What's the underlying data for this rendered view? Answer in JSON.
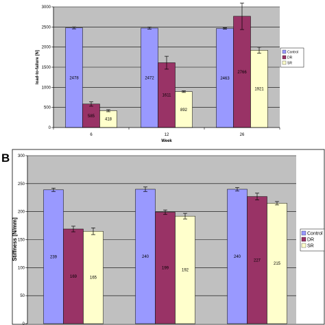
{
  "panel_labels": [
    "",
    "B"
  ],
  "chart_data": [
    {
      "type": "bar",
      "title": "",
      "xlabel": "Week",
      "ylabel": "load-to-failure [N]",
      "categories": [
        "6",
        "12",
        "26"
      ],
      "ylim": [
        0,
        3000
      ],
      "yticks": [
        "0",
        "500",
        "1000",
        "1500",
        "2000",
        "2500",
        "3000"
      ],
      "grid": true,
      "legend_position": "right",
      "series": [
        {
          "name": "Control",
          "values": [
            2478,
            2472,
            2463
          ],
          "errors": [
            25,
            25,
            15
          ],
          "labels": [
            "2478",
            "2472",
            "2463"
          ],
          "color": "#9999ff"
        },
        {
          "name": "DR",
          "values": [
            585,
            1611,
            2766
          ],
          "errors": [
            55,
            160,
            330
          ],
          "labels": [
            "585",
            "1611",
            "2766"
          ],
          "color": "#993366"
        },
        {
          "name": "SR",
          "values": [
            418,
            892,
            1921
          ],
          "errors": [
            25,
            20,
            75
          ],
          "labels": [
            "418",
            "892",
            "1921"
          ],
          "color": "#ffffcc"
        }
      ]
    },
    {
      "type": "bar",
      "title": "",
      "xlabel": "",
      "ylabel": "Stiffness [N/mm]",
      "categories": [
        "",
        "",
        ""
      ],
      "ylim": [
        0,
        300
      ],
      "yticks": [
        "0",
        "50",
        "100",
        "150",
        "200",
        "250",
        "300"
      ],
      "grid": true,
      "legend_position": "right",
      "series": [
        {
          "name": "Control",
          "values": [
            239,
            240,
            240
          ],
          "errors": [
            3,
            4,
            3
          ],
          "labels": [
            "239",
            "240",
            "240"
          ],
          "color": "#9999ff"
        },
        {
          "name": "DR",
          "values": [
            169,
            199,
            227
          ],
          "errors": [
            5,
            4,
            6
          ],
          "labels": [
            "169",
            "199",
            "227"
          ],
          "color": "#993366"
        },
        {
          "name": "SR",
          "values": [
            165,
            192,
            215
          ],
          "errors": [
            6,
            5,
            3
          ],
          "labels": [
            "165",
            "192",
            "215"
          ],
          "color": "#ffffcc"
        }
      ]
    }
  ]
}
